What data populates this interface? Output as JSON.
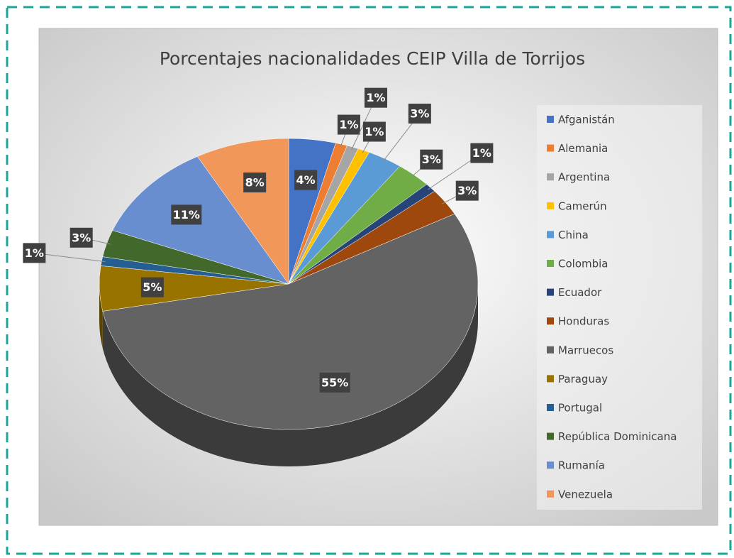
{
  "chart_data": {
    "type": "pie",
    "title": "Porcentajes nacionalidades  CEIP Villa de Torrijos",
    "categories": [
      "Afganistán",
      "Alemania",
      "Argentina",
      "Camerún",
      "China",
      "Colombia",
      "Ecuador",
      "Honduras",
      "Marruecos",
      "Paraguay",
      "Portugal",
      "República Dominicana",
      "Rumanía",
      "Venezuela"
    ],
    "values": [
      4,
      1,
      1,
      1,
      3,
      3,
      1,
      3,
      55,
      5,
      1,
      3,
      11,
      8
    ],
    "value_labels": [
      "4%",
      "1%",
      "1%",
      "1%",
      "3%",
      "3%",
      "1%",
      "3%",
      "55%",
      "5%",
      "1%",
      "3%",
      "11%",
      "8%"
    ],
    "colors": [
      "#4472c4",
      "#ed7d31",
      "#a5a5a5",
      "#ffc000",
      "#5b9bd5",
      "#70ad47",
      "#264478",
      "#9e480e",
      "#636363",
      "#997300",
      "#255e91",
      "#43682b",
      "#698ed0",
      "#f1975a"
    ],
    "legend": "right"
  }
}
